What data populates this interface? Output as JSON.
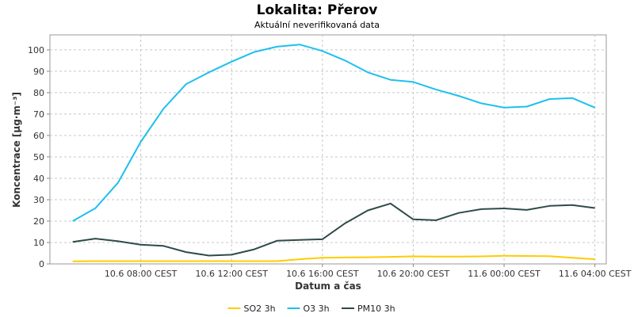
{
  "chart_data": {
    "type": "line",
    "title": "Lokalita: Přerov",
    "subtitle": "Aktuální neverifikovaná data",
    "xlabel": "Datum a čas",
    "ylabel": "Koncentrace [µg·m⁻³]",
    "ylim": [
      0,
      107
    ],
    "yticks": [
      0,
      10,
      20,
      30,
      40,
      50,
      60,
      70,
      80,
      90,
      100
    ],
    "x": [
      "10.6 05:00",
      "10.6 06:00",
      "10.6 07:00",
      "10.6 08:00",
      "10.6 09:00",
      "10.6 10:00",
      "10.6 11:00",
      "10.6 12:00",
      "10.6 13:00",
      "10.6 14:00",
      "10.6 15:00",
      "10.6 16:00",
      "10.6 17:00",
      "10.6 18:00",
      "10.6 19:00",
      "10.6 20:00",
      "10.6 21:00",
      "10.6 22:00",
      "10.6 23:00",
      "11.6 00:00",
      "11.6 01:00",
      "11.6 02:00",
      "11.6 03:00",
      "11.6 04:00"
    ],
    "xlim": [
      "10.6 04:00",
      "11.6 04:30"
    ],
    "xticks": [
      {
        "x": "10.6 08:00",
        "label": "10.6 08:00 CEST"
      },
      {
        "x": "10.6 12:00",
        "label": "10.6 12:00 CEST"
      },
      {
        "x": "10.6 16:00",
        "label": "10.6 16:00 CEST"
      },
      {
        "x": "10.6 20:00",
        "label": "10.6 20:00 CEST"
      },
      {
        "x": "11.6 00:00",
        "label": "11.6 00:00 CEST"
      },
      {
        "x": "11.6 04:00",
        "label": "11.6 04:00 CEST"
      }
    ],
    "grid": true,
    "legend_position": "bottom",
    "series": [
      {
        "name": "SO2 3h",
        "color": "#ffcc00",
        "values": [
          1.2,
          1.3,
          1.3,
          1.3,
          1.3,
          1.3,
          1.3,
          1.3,
          1.3,
          1.3,
          2.2,
          2.9,
          3.0,
          3.1,
          3.3,
          3.5,
          3.4,
          3.4,
          3.5,
          3.8,
          3.7,
          3.6,
          2.9,
          2.2
        ]
      },
      {
        "name": "O3 3h",
        "color": "#1ec0ee",
        "values": [
          20,
          26,
          38,
          57,
          72.5,
          84,
          89.5,
          94.5,
          99,
          101.5,
          102.5,
          99.5,
          95,
          89.5,
          86,
          85,
          81.5,
          78.5,
          75,
          73,
          73.5,
          77,
          77.5,
          73
        ]
      },
      {
        "name": "PM10 3h",
        "color": "#2f4a4a",
        "values": [
          10.3,
          11.8,
          10.6,
          9,
          8.4,
          5.5,
          3.9,
          4.3,
          6.8,
          10.8,
          11.2,
          11.5,
          19,
          25,
          28.2,
          20.8,
          20.4,
          23.8,
          25.6,
          25.9,
          25.2,
          27.1,
          27.5,
          26.1
        ]
      }
    ]
  }
}
